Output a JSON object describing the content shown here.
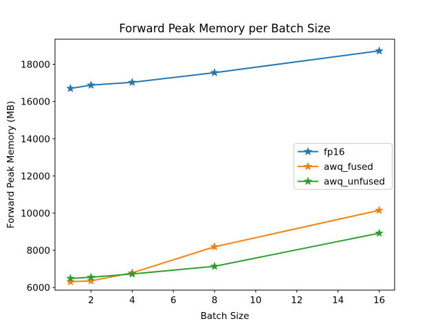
{
  "figure": {
    "background": "#ffffff"
  },
  "chart_data": {
    "type": "line",
    "title": "Forward Peak Memory per Batch Size",
    "xlabel": "Batch Size",
    "ylabel": "Forward Peak Memory (MB)",
    "x": [
      1,
      2,
      4,
      8,
      16
    ],
    "series": [
      {
        "name": "fp16",
        "color": "#1f77b4",
        "marker": "star",
        "values": [
          16700,
          16880,
          17030,
          17550,
          18720
        ]
      },
      {
        "name": "awq_fused",
        "color": "#ff7f0e",
        "marker": "star",
        "values": [
          6310,
          6360,
          6790,
          8190,
          10150
        ]
      },
      {
        "name": "awq_unfused",
        "color": "#2ca02c",
        "marker": "star",
        "values": [
          6490,
          6550,
          6730,
          7140,
          8920
        ]
      }
    ],
    "xticks": [
      2,
      4,
      6,
      8,
      10,
      12,
      14,
      16
    ],
    "yticks": [
      6000,
      8000,
      10000,
      12000,
      14000,
      16000,
      18000
    ],
    "xlim": [
      0.25,
      16.75
    ],
    "ylim": [
      5860,
      19350
    ],
    "grid": false,
    "legend": {
      "position": "center-right",
      "entries": [
        "fp16",
        "awq_fused",
        "awq_unfused"
      ]
    }
  },
  "colors": {
    "axis": "#000000",
    "text": "#000000",
    "legend_border": "#cccccc",
    "legend_fill": "#ffffff"
  }
}
